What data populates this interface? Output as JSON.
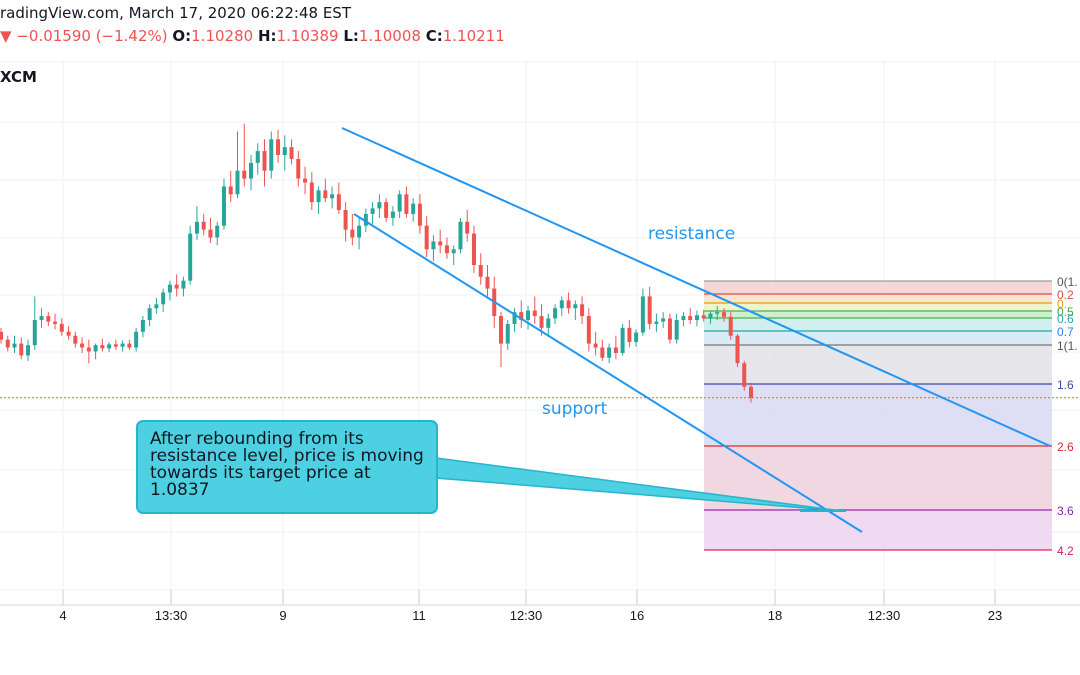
{
  "header": {
    "source_date": "radingView.com, March 17, 2020 06:22:48 EST",
    "change": "−0.01590 (−1.42%)",
    "open_label": "O:",
    "open_value": "1.10280",
    "high_label": "H:",
    "high_value": "1.10389",
    "low_label": "L:",
    "low_value": "1.10008",
    "close_label": "C:",
    "close_value": "1.10211",
    "symbol_fragment": "XCM"
  },
  "chart_data": {
    "type": "candlestick",
    "x_ticks": [
      "4",
      "13:30",
      "9",
      "11",
      "12:30",
      "16",
      "18",
      "12:30",
      "23"
    ],
    "grid": true,
    "annotations": {
      "resistance": "resistance",
      "support": "support",
      "callout": "After rebounding from its resistance level, price is moving towards its target price at 1.0837",
      "target_price": 1.0837
    },
    "fib_labels": [
      "0(1.",
      "0.2",
      "0.",
      "0.5",
      "0.6",
      "0.7",
      "1(1.",
      "1.6",
      "2.6",
      "3.6",
      "4.2"
    ],
    "colors": {
      "bull": "#26a69a",
      "bear": "#ef5350",
      "trend": "#2196f3",
      "text_blue": "#2196f3"
    },
    "candles": [
      {
        "o": 1.1105,
        "h": 1.111,
        "l": 1.109,
        "c": 1.1095
      },
      {
        "o": 1.1095,
        "h": 1.11,
        "l": 1.108,
        "c": 1.1085
      },
      {
        "o": 1.1085,
        "h": 1.11,
        "l": 1.1078,
        "c": 1.109
      },
      {
        "o": 1.109,
        "h": 1.1098,
        "l": 1.107,
        "c": 1.1075
      },
      {
        "o": 1.1075,
        "h": 1.1095,
        "l": 1.1068,
        "c": 1.1088
      },
      {
        "o": 1.1088,
        "h": 1.115,
        "l": 1.1082,
        "c": 1.112
      },
      {
        "o": 1.112,
        "h": 1.1135,
        "l": 1.111,
        "c": 1.1125
      },
      {
        "o": 1.1125,
        "h": 1.113,
        "l": 1.1112,
        "c": 1.1118
      },
      {
        "o": 1.1118,
        "h": 1.1128,
        "l": 1.1108,
        "c": 1.1115
      },
      {
        "o": 1.1115,
        "h": 1.1122,
        "l": 1.11,
        "c": 1.1105
      },
      {
        "o": 1.1105,
        "h": 1.1112,
        "l": 1.1095,
        "c": 1.11
      },
      {
        "o": 1.11,
        "h": 1.1105,
        "l": 1.1085,
        "c": 1.109
      },
      {
        "o": 1.109,
        "h": 1.1098,
        "l": 1.1078,
        "c": 1.1085
      },
      {
        "o": 1.1085,
        "h": 1.1095,
        "l": 1.1065,
        "c": 1.108
      },
      {
        "o": 1.108,
        "h": 1.109,
        "l": 1.107,
        "c": 1.1088
      },
      {
        "o": 1.1088,
        "h": 1.1096,
        "l": 1.108,
        "c": 1.1084
      },
      {
        "o": 1.1084,
        "h": 1.1092,
        "l": 1.1079,
        "c": 1.1089
      },
      {
        "o": 1.1089,
        "h": 1.1095,
        "l": 1.1082,
        "c": 1.1086
      },
      {
        "o": 1.1086,
        "h": 1.1094,
        "l": 1.108,
        "c": 1.109
      },
      {
        "o": 1.109,
        "h": 1.1095,
        "l": 1.1082,
        "c": 1.1085
      },
      {
        "o": 1.1085,
        "h": 1.111,
        "l": 1.108,
        "c": 1.1105
      },
      {
        "o": 1.1105,
        "h": 1.1125,
        "l": 1.1098,
        "c": 1.112
      },
      {
        "o": 1.112,
        "h": 1.114,
        "l": 1.1112,
        "c": 1.1135
      },
      {
        "o": 1.1135,
        "h": 1.1148,
        "l": 1.1128,
        "c": 1.114
      },
      {
        "o": 1.114,
        "h": 1.116,
        "l": 1.113,
        "c": 1.1155
      },
      {
        "o": 1.1155,
        "h": 1.117,
        "l": 1.1145,
        "c": 1.1165
      },
      {
        "o": 1.1165,
        "h": 1.1178,
        "l": 1.115,
        "c": 1.116
      },
      {
        "o": 1.116,
        "h": 1.1175,
        "l": 1.115,
        "c": 1.117
      },
      {
        "o": 1.117,
        "h": 1.124,
        "l": 1.1165,
        "c": 1.123
      },
      {
        "o": 1.123,
        "h": 1.1265,
        "l": 1.1222,
        "c": 1.1245
      },
      {
        "o": 1.1245,
        "h": 1.1255,
        "l": 1.1228,
        "c": 1.1235
      },
      {
        "o": 1.1235,
        "h": 1.125,
        "l": 1.1218,
        "c": 1.1225
      },
      {
        "o": 1.1225,
        "h": 1.1245,
        "l": 1.1215,
        "c": 1.124
      },
      {
        "o": 1.124,
        "h": 1.13,
        "l": 1.1235,
        "c": 1.129
      },
      {
        "o": 1.129,
        "h": 1.131,
        "l": 1.127,
        "c": 1.128
      },
      {
        "o": 1.128,
        "h": 1.136,
        "l": 1.1275,
        "c": 1.131
      },
      {
        "o": 1.131,
        "h": 1.137,
        "l": 1.129,
        "c": 1.13
      },
      {
        "o": 1.13,
        "h": 1.133,
        "l": 1.1285,
        "c": 1.132
      },
      {
        "o": 1.132,
        "h": 1.1345,
        "l": 1.1305,
        "c": 1.1335
      },
      {
        "o": 1.1335,
        "h": 1.135,
        "l": 1.129,
        "c": 1.131
      },
      {
        "o": 1.131,
        "h": 1.136,
        "l": 1.13,
        "c": 1.135
      },
      {
        "o": 1.135,
        "h": 1.1362,
        "l": 1.132,
        "c": 1.133
      },
      {
        "o": 1.133,
        "h": 1.1355,
        "l": 1.131,
        "c": 1.134
      },
      {
        "o": 1.134,
        "h": 1.135,
        "l": 1.1318,
        "c": 1.1325
      },
      {
        "o": 1.1325,
        "h": 1.1335,
        "l": 1.129,
        "c": 1.13
      },
      {
        "o": 1.13,
        "h": 1.1315,
        "l": 1.128,
        "c": 1.1295
      },
      {
        "o": 1.1295,
        "h": 1.1308,
        "l": 1.126,
        "c": 1.127
      },
      {
        "o": 1.127,
        "h": 1.129,
        "l": 1.1255,
        "c": 1.1285
      },
      {
        "o": 1.1285,
        "h": 1.13,
        "l": 1.127,
        "c": 1.1275
      },
      {
        "o": 1.1275,
        "h": 1.129,
        "l": 1.1262,
        "c": 1.128
      },
      {
        "o": 1.128,
        "h": 1.1295,
        "l": 1.1255,
        "c": 1.126
      },
      {
        "o": 1.126,
        "h": 1.127,
        "l": 1.122,
        "c": 1.1235
      },
      {
        "o": 1.1235,
        "h": 1.1255,
        "l": 1.1215,
        "c": 1.1225
      },
      {
        "o": 1.1225,
        "h": 1.125,
        "l": 1.121,
        "c": 1.124
      },
      {
        "o": 1.124,
        "h": 1.1262,
        "l": 1.1232,
        "c": 1.1255
      },
      {
        "o": 1.1255,
        "h": 1.127,
        "l": 1.1242,
        "c": 1.1262
      },
      {
        "o": 1.1262,
        "h": 1.128,
        "l": 1.125,
        "c": 1.127
      },
      {
        "o": 1.127,
        "h": 1.1275,
        "l": 1.1245,
        "c": 1.125
      },
      {
        "o": 1.125,
        "h": 1.1265,
        "l": 1.124,
        "c": 1.1258
      },
      {
        "o": 1.1258,
        "h": 1.1285,
        "l": 1.125,
        "c": 1.128
      },
      {
        "o": 1.128,
        "h": 1.129,
        "l": 1.125,
        "c": 1.1255
      },
      {
        "o": 1.1255,
        "h": 1.1275,
        "l": 1.1245,
        "c": 1.1268
      },
      {
        "o": 1.1268,
        "h": 1.128,
        "l": 1.123,
        "c": 1.124
      },
      {
        "o": 1.124,
        "h": 1.1252,
        "l": 1.12,
        "c": 1.121
      },
      {
        "o": 1.121,
        "h": 1.1228,
        "l": 1.1195,
        "c": 1.122
      },
      {
        "o": 1.122,
        "h": 1.1235,
        "l": 1.1205,
        "c": 1.1215
      },
      {
        "o": 1.1215,
        "h": 1.1225,
        "l": 1.1198,
        "c": 1.1205
      },
      {
        "o": 1.1205,
        "h": 1.1215,
        "l": 1.119,
        "c": 1.121
      },
      {
        "o": 1.121,
        "h": 1.125,
        "l": 1.1205,
        "c": 1.1245
      },
      {
        "o": 1.1245,
        "h": 1.126,
        "l": 1.122,
        "c": 1.123
      },
      {
        "o": 1.123,
        "h": 1.124,
        "l": 1.118,
        "c": 1.119
      },
      {
        "o": 1.119,
        "h": 1.1205,
        "l": 1.1165,
        "c": 1.1175
      },
      {
        "o": 1.1175,
        "h": 1.119,
        "l": 1.115,
        "c": 1.116
      },
      {
        "o": 1.116,
        "h": 1.1175,
        "l": 1.111,
        "c": 1.1125
      },
      {
        "o": 1.1125,
        "h": 1.113,
        "l": 1.106,
        "c": 1.109
      },
      {
        "o": 1.109,
        "h": 1.112,
        "l": 1.1082,
        "c": 1.1115
      },
      {
        "o": 1.1115,
        "h": 1.1135,
        "l": 1.1105,
        "c": 1.113
      },
      {
        "o": 1.113,
        "h": 1.1145,
        "l": 1.111,
        "c": 1.112
      },
      {
        "o": 1.112,
        "h": 1.1138,
        "l": 1.1108,
        "c": 1.1132
      },
      {
        "o": 1.1132,
        "h": 1.115,
        "l": 1.1115,
        "c": 1.1125
      },
      {
        "o": 1.1125,
        "h": 1.114,
        "l": 1.11,
        "c": 1.111
      },
      {
        "o": 1.111,
        "h": 1.1128,
        "l": 1.11,
        "c": 1.1122
      },
      {
        "o": 1.1122,
        "h": 1.114,
        "l": 1.1115,
        "c": 1.1135
      },
      {
        "o": 1.1135,
        "h": 1.115,
        "l": 1.1125,
        "c": 1.1145
      },
      {
        "o": 1.1145,
        "h": 1.1155,
        "l": 1.1128,
        "c": 1.1135
      },
      {
        "o": 1.1135,
        "h": 1.1145,
        "l": 1.112,
        "c": 1.114
      },
      {
        "o": 1.114,
        "h": 1.115,
        "l": 1.1115,
        "c": 1.1125
      },
      {
        "o": 1.1125,
        "h": 1.1135,
        "l": 1.108,
        "c": 1.109
      },
      {
        "o": 1.109,
        "h": 1.1105,
        "l": 1.1075,
        "c": 1.1085
      },
      {
        "o": 1.1085,
        "h": 1.1095,
        "l": 1.1068,
        "c": 1.1072
      },
      {
        "o": 1.1072,
        "h": 1.109,
        "l": 1.1065,
        "c": 1.1085
      },
      {
        "o": 1.1085,
        "h": 1.11,
        "l": 1.107,
        "c": 1.1078
      },
      {
        "o": 1.1078,
        "h": 1.1115,
        "l": 1.1075,
        "c": 1.111
      },
      {
        "o": 1.111,
        "h": 1.112,
        "l": 1.1085,
        "c": 1.1092
      },
      {
        "o": 1.1092,
        "h": 1.1108,
        "l": 1.1086,
        "c": 1.1104
      },
      {
        "o": 1.1104,
        "h": 1.116,
        "l": 1.11,
        "c": 1.115
      },
      {
        "o": 1.115,
        "h": 1.1162,
        "l": 1.1108,
        "c": 1.1115
      },
      {
        "o": 1.1115,
        "h": 1.1128,
        "l": 1.1105,
        "c": 1.1118
      },
      {
        "o": 1.1118,
        "h": 1.113,
        "l": 1.111,
        "c": 1.1122
      },
      {
        "o": 1.1122,
        "h": 1.1128,
        "l": 1.109,
        "c": 1.1095
      },
      {
        "o": 1.1095,
        "h": 1.1128,
        "l": 1.109,
        "c": 1.112
      },
      {
        "o": 1.112,
        "h": 1.113,
        "l": 1.1112,
        "c": 1.1125
      },
      {
        "o": 1.1125,
        "h": 1.1135,
        "l": 1.1115,
        "c": 1.112
      },
      {
        "o": 1.112,
        "h": 1.1132,
        "l": 1.1112,
        "c": 1.1126
      },
      {
        "o": 1.1126,
        "h": 1.1133,
        "l": 1.1118,
        "c": 1.1122
      },
      {
        "o": 1.1122,
        "h": 1.1132,
        "l": 1.1115,
        "c": 1.1128
      },
      {
        "o": 1.1128,
        "h": 1.1138,
        "l": 1.112,
        "c": 1.113
      },
      {
        "o": 1.113,
        "h": 1.1135,
        "l": 1.1118,
        "c": 1.1124
      },
      {
        "o": 1.1124,
        "h": 1.113,
        "l": 1.1095,
        "c": 1.11
      },
      {
        "o": 1.11,
        "h": 1.1102,
        "l": 1.106,
        "c": 1.1065
      },
      {
        "o": 1.1065,
        "h": 1.1068,
        "l": 1.103,
        "c": 1.1035
      },
      {
        "o": 1.1035,
        "h": 1.104,
        "l": 1.1015,
        "c": 1.1021
      }
    ]
  }
}
